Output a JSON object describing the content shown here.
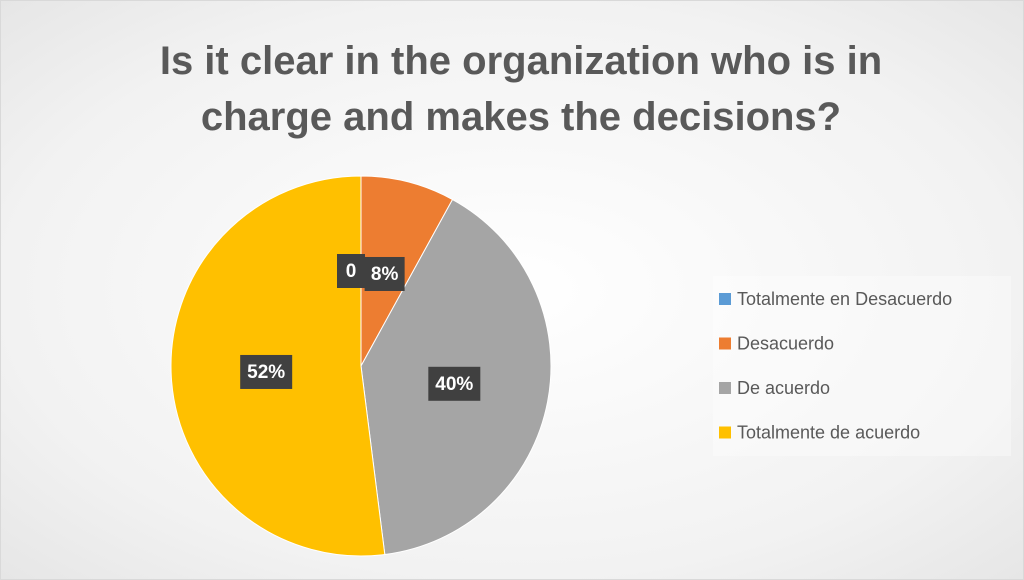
{
  "chart_data": {
    "type": "pie",
    "title": "Is it clear in the organization who is in charge and makes the decisions?",
    "categories": [
      "Totalmente en Desacuerdo",
      "Desacuerdo",
      "De acuerdo",
      "Totalmente de acuerdo"
    ],
    "values": [
      0,
      8,
      40,
      52
    ],
    "value_labels": [
      "0",
      "8%",
      "40%",
      "52%"
    ],
    "colors": [
      "#5b9bd5",
      "#ed7d31",
      "#a5a5a5",
      "#ffc000"
    ],
    "legend": "right"
  }
}
